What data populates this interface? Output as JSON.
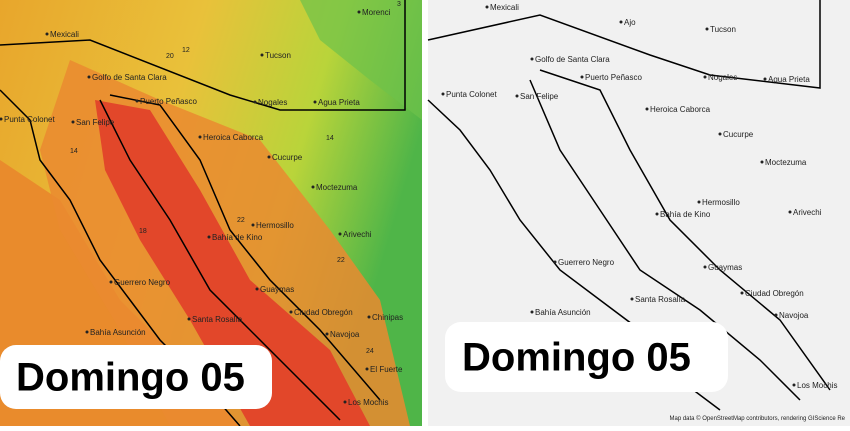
{
  "left_panel": {
    "caption": "Domingo 05",
    "places": [
      "Mexicali",
      "Golfo de Santa Clara",
      "Puerto Peñasco",
      "San Felipe",
      "Punta Colonet",
      "Heroica Caborca",
      "Tucson",
      "Nogales",
      "Agua Prieta",
      "Cucurpe",
      "Moctezuma",
      "Hermosillo",
      "Bahía de Kino",
      "Arivechi",
      "Guaymas",
      "Santa Rosalía",
      "Ciudad Obregón",
      "Navojoa",
      "El Fuerte",
      "Los Mochis",
      "Guerrero Negro",
      "Bahía Asunción",
      "Chinipas",
      "Morenci"
    ],
    "values": [
      "20",
      "12",
      "14",
      "14",
      "18",
      "22",
      "22",
      "24",
      "3"
    ]
  },
  "right_panel": {
    "caption": "Domingo 05",
    "places": [
      "Mexicali",
      "Ajo",
      "Tucson",
      "Golfo de Santa Clara",
      "Puerto Peñasco",
      "Punta Colonet",
      "San Felipe",
      "Heroica Caborca",
      "Nogales",
      "Agua Prieta",
      "Cucurpe",
      "Moctezuma",
      "Hermosillo",
      "Bahía de Kino",
      "Arivechi",
      "Guerrero Negro",
      "Guaymas",
      "Santa Rosalía",
      "Ciudad Obregón",
      "Navojoa",
      "Bahía Asunción",
      "Los Mochis"
    ],
    "attribution": "Map data © OpenStreetMap contributors, rendering GIScience Re"
  }
}
